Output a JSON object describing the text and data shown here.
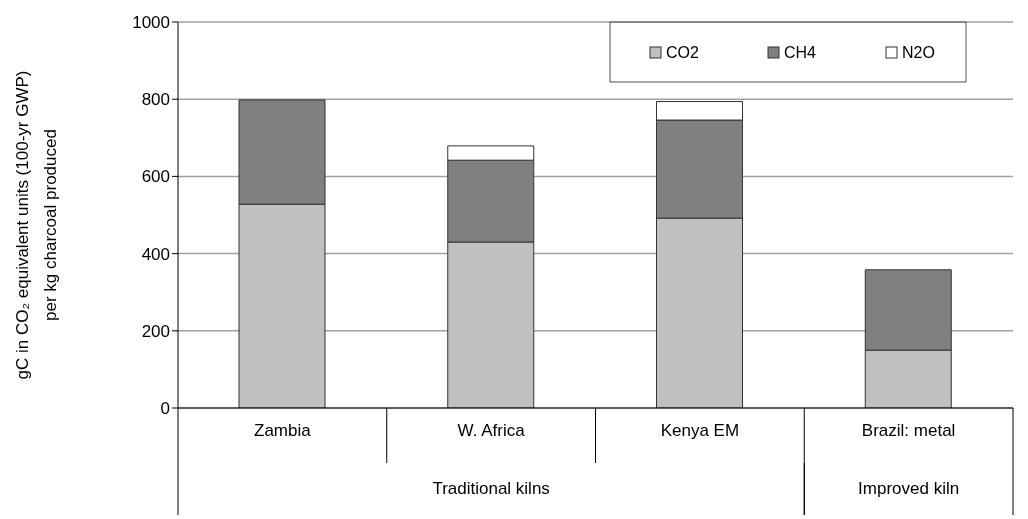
{
  "chart_data": {
    "type": "bar",
    "stacked": true,
    "ylabel": "gC in CO₂ equivalent units (100-yr GWP)\nper kg charcoal produced",
    "categories": [
      "Zambia",
      "W. Africa",
      "Kenya EM",
      "Brazil: metal"
    ],
    "series": [
      {
        "name": "CO2",
        "color": "#c0c0c0",
        "values": [
          528,
          430,
          492,
          150
        ]
      },
      {
        "name": "CH4",
        "color": "#808080",
        "values": [
          270,
          212,
          254,
          208
        ]
      },
      {
        "name": "N2O",
        "color": "#ffffff",
        "values": [
          null,
          37,
          48,
          null
        ]
      }
    ],
    "ylim": [
      0,
      1000
    ],
    "yticks": [
      0,
      200,
      400,
      600,
      800,
      1000
    ],
    "grid": "y",
    "legend": "top right",
    "annotations": [
      "Traditional kilns",
      "Improved kiln"
    ]
  }
}
